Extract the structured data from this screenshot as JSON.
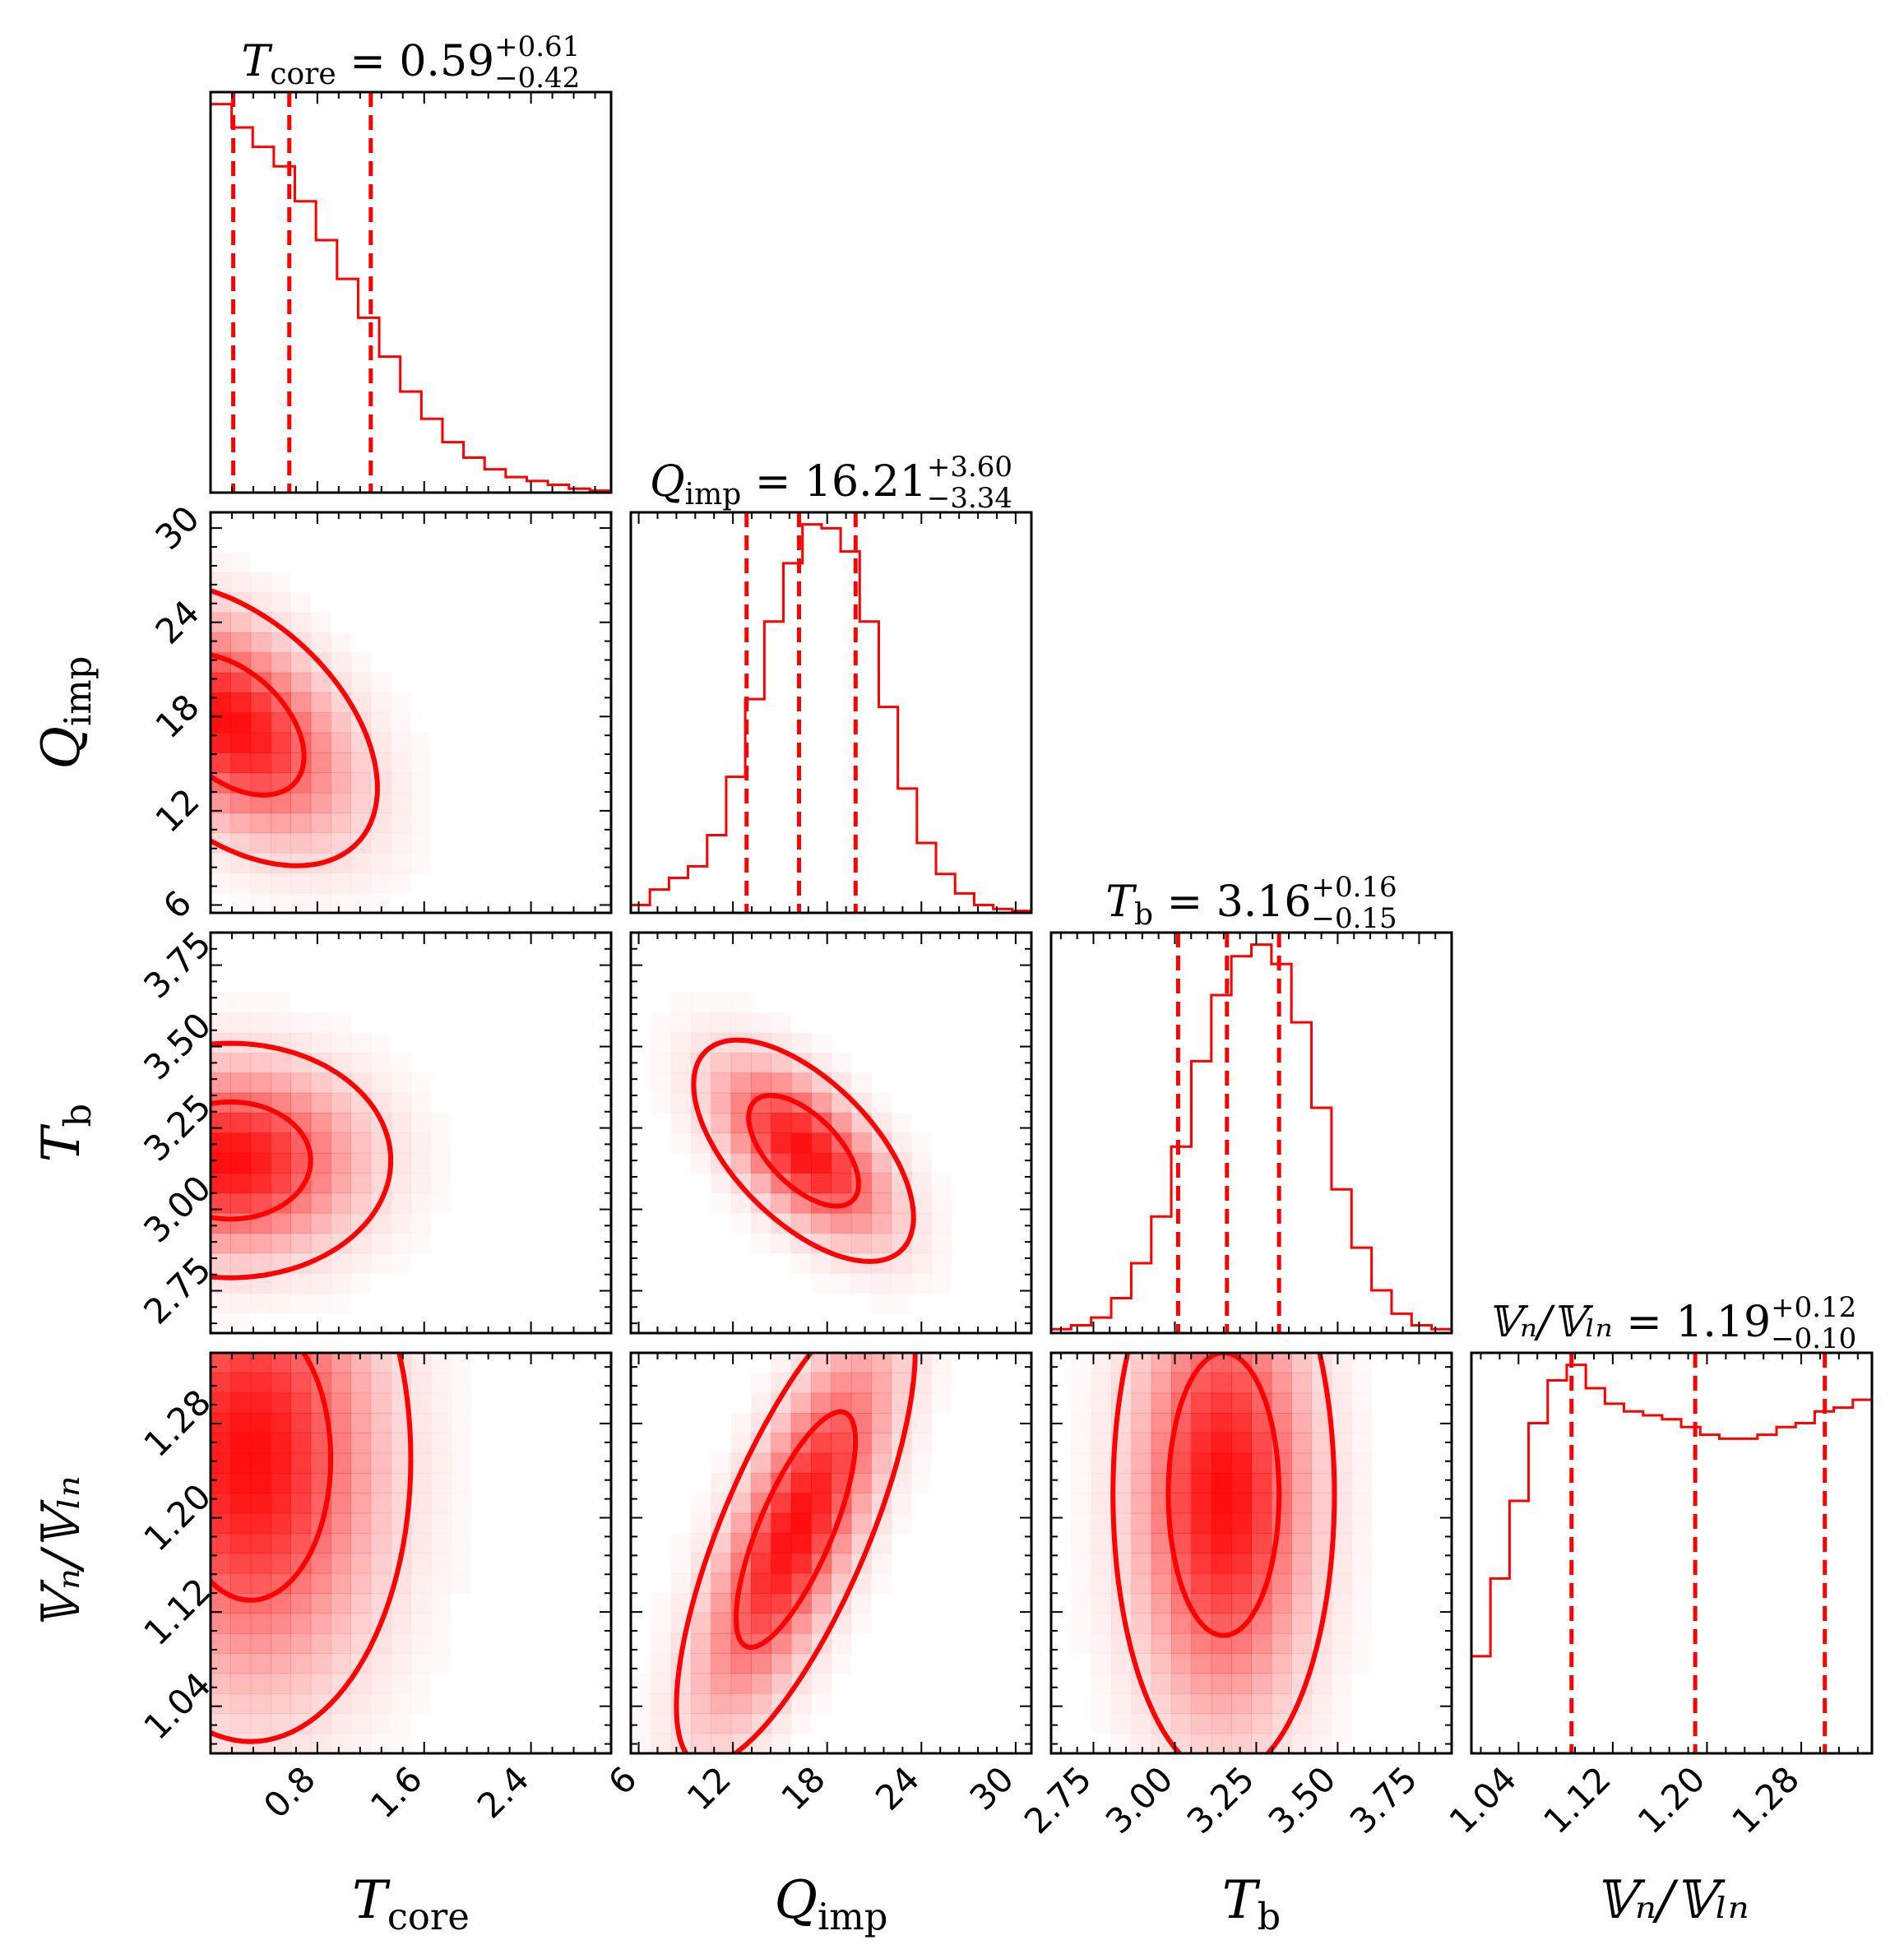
{
  "chart_data": {
    "type": "corner",
    "color": "#ff0000",
    "parameters": [
      {
        "key": "Tcore",
        "sym": "T",
        "sub": "core",
        "mathbb": false,
        "range": [
          0,
          3.0
        ],
        "ticks": [
          0.8,
          1.6,
          2.4
        ],
        "tick_labels": [
          "0.8",
          "1.6",
          "2.4"
        ],
        "title_value": "0.59",
        "title_plus": "+0.61",
        "title_minus": "−0.42",
        "quantiles": [
          0.17,
          0.59,
          1.2
        ]
      },
      {
        "key": "Qimp",
        "sym": "Q",
        "sub": "imp",
        "mathbb": false,
        "range": [
          5.5,
          31
        ],
        "ticks": [
          6,
          12,
          18,
          24,
          30
        ],
        "tick_labels": [
          "6",
          "12",
          "18",
          "24",
          "30"
        ],
        "title_value": "16.21",
        "title_plus": "+3.60",
        "title_minus": "−3.34",
        "quantiles": [
          12.87,
          16.21,
          19.81
        ]
      },
      {
        "key": "Tb",
        "sym": "T",
        "sub": "b",
        "mathbb": false,
        "range": [
          2.62,
          3.85
        ],
        "ticks": [
          2.75,
          3.0,
          3.25,
          3.5,
          3.75
        ],
        "tick_labels": [
          "2.75",
          "3.00",
          "3.25",
          "3.50",
          "3.75"
        ],
        "title_value": "3.16",
        "title_plus": "+0.16",
        "title_minus": "−0.15",
        "quantiles": [
          3.01,
          3.16,
          3.32
        ]
      },
      {
        "key": "VnVLn",
        "sym": "𝕍ₙ/𝕍ₗₙ",
        "sub": "",
        "mathbb": true,
        "range": [
          1.0,
          1.34
        ],
        "ticks": [
          1.04,
          1.12,
          1.2,
          1.28
        ],
        "tick_labels": [
          "1.04",
          "1.12",
          "1.20",
          "1.28"
        ],
        "title_value": "1.19",
        "title_plus": "+0.12",
        "title_minus": "−0.10",
        "quantiles": [
          1.085,
          1.19,
          1.3
        ]
      }
    ],
    "axis_title_labels": {
      "Tcore": "T",
      "Qimp": "Q",
      "Tb": "T",
      "VnVLn": "𝕍ₙ/𝕍ₗₙ"
    },
    "histograms": {
      "Tcore": [
        100,
        94,
        89,
        84,
        75,
        65,
        55,
        45,
        35,
        26,
        19,
        13,
        9,
        6,
        4,
        3,
        2,
        1,
        0.5
      ],
      "Qimp": [
        2,
        6,
        9,
        12,
        20,
        35,
        55,
        75,
        90,
        100,
        99,
        93,
        75,
        53,
        32,
        18,
        10,
        5,
        2,
        1,
        0.5
      ],
      "Tb": [
        1,
        2,
        4,
        9,
        18,
        30,
        48,
        70,
        87,
        97,
        100,
        95,
        80,
        58,
        37,
        22,
        11,
        5,
        2,
        1
      ],
      "VnVLn": [
        25,
        45,
        65,
        85,
        96,
        100,
        94,
        90,
        88,
        87,
        86,
        84,
        82,
        81,
        81,
        82,
        84,
        85,
        88,
        89,
        91
      ]
    },
    "contours": {
      "Tcore|Qimp": {
        "mean": [
          0.15,
          17.5
        ],
        "sd": [
          0.55,
          4.5
        ],
        "rho": -0.45,
        "levels": [
          1.0,
          2.0
        ]
      },
      "Tcore|Tb": {
        "mean": [
          0.15,
          3.15
        ],
        "sd": [
          0.6,
          0.18
        ],
        "rho": 0.0,
        "levels": [
          1.0,
          2.0
        ]
      },
      "Qimp|Tb": {
        "mean": [
          16.5,
          3.18
        ],
        "sd": [
          3.5,
          0.17
        ],
        "rho": -0.6,
        "levels": [
          1.0,
          2.0
        ]
      },
      "Tcore|VnVLn": {
        "mean": [
          0.3,
          1.25
        ],
        "sd": [
          0.6,
          0.12
        ],
        "rho": 0.0,
        "levels": [
          1.0,
          2.0
        ]
      },
      "Qimp|VnVLn": {
        "mean": [
          16.0,
          1.19
        ],
        "sd": [
          3.8,
          0.1
        ],
        "rho": 0.75,
        "levels": [
          1.0,
          2.0
        ]
      },
      "Tb|VnVLn": {
        "mean": [
          3.15,
          1.22
        ],
        "sd": [
          0.17,
          0.12
        ],
        "rho": 0.0,
        "levels": [
          1.0,
          2.0
        ]
      }
    }
  }
}
